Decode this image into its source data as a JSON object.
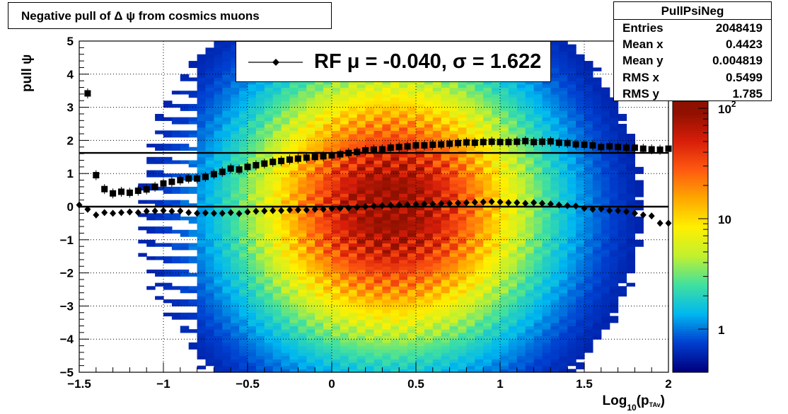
{
  "title": "Negative pull of Δ ψ from cosmics muons",
  "stats_box": {
    "name": "PullPsiNeg",
    "rows": [
      {
        "label": "Entries",
        "value": "2048419"
      },
      {
        "label": "Mean x",
        "value": "0.4423"
      },
      {
        "label": "Mean y",
        "value": "0.004819"
      },
      {
        "label": "RMS x",
        "value": "0.5499"
      },
      {
        "label": "RMS y",
        "value": "1.785"
      }
    ]
  },
  "legend": {
    "label": "RF μ = -0.040, σ =   1.622"
  },
  "axes": {
    "ylabel": "pull ψ",
    "xlabel_main": "Log",
    "xlabel_sub": "10",
    "xlabel_open": "(p",
    "xlabel_sub2": "TAv",
    "xlabel_close": ")"
  },
  "colors": {
    "mean_marker": "#000000",
    "sigma_marker": "#000000",
    "palette": [
      "#00007f",
      "#0040d0",
      "#00b8f0",
      "#40e0a0",
      "#c0f030",
      "#fff000",
      "#ffa800",
      "#ff5a10",
      "#d81e0a",
      "#901000"
    ]
  },
  "chart_data": {
    "type": "heatmap",
    "xlim": [
      -1.5,
      2.0
    ],
    "ylim": [
      -5,
      5
    ],
    "x_ticks": [
      "−1.5",
      "−1",
      "−0.5",
      "0",
      "0.5",
      "1",
      "1.5",
      "2"
    ],
    "y_ticks": [
      "5",
      "4",
      "3",
      "2",
      "1",
      "0",
      "−1",
      "−2",
      "−3",
      "−4",
      "−5"
    ],
    "z_scale": "log",
    "z_ticks": [
      "1",
      "10",
      "10^2"
    ],
    "grid": true,
    "lines": [
      {
        "name": "sigma reference",
        "y": 1.622
      },
      {
        "name": "mean reference",
        "y": 0.0
      }
    ],
    "series": [
      {
        "marker": "square",
        "x": [
          -1.45,
          -1.4,
          -1.35,
          -1.3,
          -1.25,
          -1.2,
          -1.15,
          -1.1,
          -1.05,
          -1.0,
          -0.95,
          -0.9,
          -0.85,
          -0.8,
          -0.75,
          -0.7,
          -0.65,
          -0.6,
          -0.55,
          -0.5,
          -0.45,
          -0.4,
          -0.35,
          -0.3,
          -0.25,
          -0.2,
          -0.15,
          -0.1,
          -0.05,
          0.0,
          0.05,
          0.1,
          0.15,
          0.2,
          0.25,
          0.3,
          0.35,
          0.4,
          0.45,
          0.5,
          0.55,
          0.6,
          0.65,
          0.7,
          0.75,
          0.8,
          0.85,
          0.9,
          0.95,
          1.0,
          1.05,
          1.1,
          1.15,
          1.2,
          1.25,
          1.3,
          1.35,
          1.4,
          1.45,
          1.5,
          1.55,
          1.6,
          1.65,
          1.7,
          1.75,
          1.8,
          1.85,
          1.9,
          1.95,
          2.0
        ],
        "y": [
          3.42,
          0.95,
          0.53,
          0.4,
          0.45,
          0.42,
          0.48,
          0.52,
          0.6,
          0.7,
          0.75,
          0.8,
          0.85,
          0.85,
          0.9,
          0.98,
          1.05,
          1.15,
          1.12,
          1.2,
          1.25,
          1.3,
          1.35,
          1.38,
          1.42,
          1.45,
          1.48,
          1.5,
          1.52,
          1.55,
          1.58,
          1.62,
          1.65,
          1.7,
          1.72,
          1.73,
          1.78,
          1.8,
          1.82,
          1.85,
          1.85,
          1.87,
          1.88,
          1.9,
          1.92,
          1.94,
          1.93,
          1.95,
          1.96,
          1.95,
          1.95,
          1.96,
          1.98,
          1.95,
          1.96,
          1.97,
          1.93,
          1.92,
          1.88,
          1.87,
          1.85,
          1.8,
          1.82,
          1.8,
          1.78,
          1.78,
          1.75,
          1.73,
          1.72,
          1.75
        ]
      },
      {
        "marker": "diamond",
        "x": [
          -1.5,
          -1.45,
          -1.4,
          -1.35,
          -1.3,
          -1.25,
          -1.2,
          -1.15,
          -1.1,
          -1.05,
          -1.0,
          -0.95,
          -0.9,
          -0.85,
          -0.8,
          -0.75,
          -0.7,
          -0.65,
          -0.6,
          -0.55,
          -0.5,
          -0.45,
          -0.4,
          -0.35,
          -0.3,
          -0.25,
          -0.2,
          -0.15,
          -0.1,
          -0.05,
          0.0,
          0.05,
          0.1,
          0.15,
          0.2,
          0.25,
          0.3,
          0.35,
          0.4,
          0.45,
          0.5,
          0.55,
          0.6,
          0.65,
          0.7,
          0.75,
          0.8,
          0.85,
          0.9,
          0.95,
          1.0,
          1.05,
          1.1,
          1.15,
          1.2,
          1.25,
          1.3,
          1.35,
          1.4,
          1.45,
          1.5,
          1.55,
          1.6,
          1.65,
          1.7,
          1.75,
          1.8,
          1.85,
          1.9,
          1.95,
          2.0
        ],
        "y": [
          0.05,
          -0.08,
          -0.25,
          -0.18,
          -0.2,
          -0.18,
          -0.16,
          -0.18,
          -0.14,
          -0.13,
          -0.12,
          -0.14,
          -0.13,
          -0.18,
          -0.2,
          -0.19,
          -0.2,
          -0.2,
          -0.18,
          -0.21,
          -0.16,
          -0.14,
          -0.13,
          -0.12,
          -0.12,
          -0.1,
          -0.1,
          -0.1,
          -0.08,
          -0.08,
          -0.06,
          -0.05,
          -0.04,
          -0.02,
          0.0,
          0.02,
          0.03,
          0.04,
          0.05,
          0.06,
          0.07,
          0.08,
          0.08,
          0.09,
          0.1,
          0.11,
          0.12,
          0.13,
          0.14,
          0.15,
          0.14,
          0.12,
          0.12,
          0.1,
          0.12,
          0.1,
          0.08,
          0.05,
          0.03,
          0.02,
          -0.05,
          -0.08,
          -0.07,
          -0.12,
          -0.12,
          -0.15,
          -0.2,
          -0.25,
          -0.28,
          -0.5,
          -0.5
        ]
      }
    ]
  }
}
